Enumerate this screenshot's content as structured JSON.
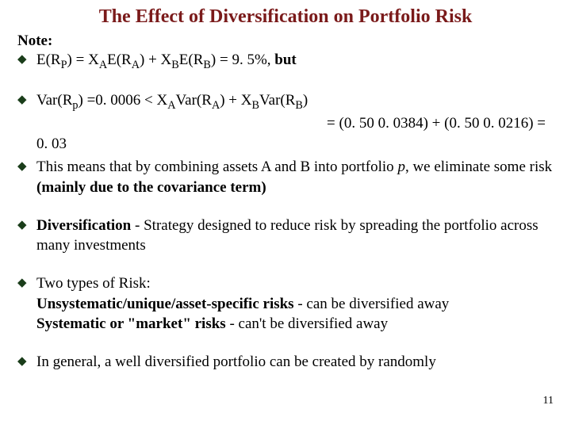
{
  "title_color": "#7a1a1a",
  "bullet_color": "#1a3d1a",
  "text_color": "#000000",
  "title": "The Effect of Diversification on Portfolio Risk",
  "note_label": "Note:",
  "b1_a": "E(R",
  "b1_b": ") = X",
  "b1_c": "E(R",
  "b1_d": ") + X",
  "b1_e": "E(R",
  "b1_f": ") = 9. 5%, ",
  "b1_but": "but",
  "b2_a": "Var(R",
  "b2_b": ") =0. 0006 < X",
  "b2_c": "Var(R",
  "b2_d": ") + X",
  "b2_e": "Var(R",
  "b2_f": ")",
  "b2_line2": "= (0. 50    0. 0384) + (0. 50   0. 0216) =",
  "b2_end": "0. 03",
  "b3_a": "This means that by combining assets A and B into portfolio ",
  "b3_p": "p",
  "b3_b": ", we eliminate some risk ",
  "b3_c": "(mainly due to the covariance term)",
  "b4_a": "Diversification",
  "b4_b": " -  Strategy designed to reduce risk by spreading the portfolio across many investments",
  "b5_a": "Two types of Risk:",
  "b5_l1a": "Unsystematic/unique/asset-specific risks",
  "b5_l1b": " - can be diversified away",
  "b5_l2a": "Systematic or \"market\" risks",
  "b5_l2b": " - can't be diversified away",
  "b6": "In general, a well diversified portfolio can be created by randomly",
  "sub_P": "P",
  "sub_A": "A",
  "sub_B": "B",
  "sub_p": "p",
  "page_number": "11"
}
